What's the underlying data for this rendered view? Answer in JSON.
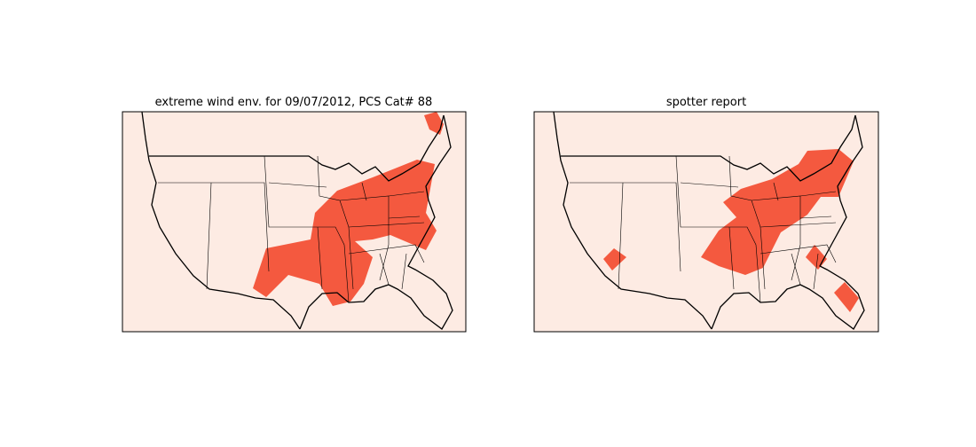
{
  "panels": [
    {
      "title": "extreme wind env. for 09/07/2012, PCS Cat# 88"
    },
    {
      "title": "spotter report"
    }
  ]
}
